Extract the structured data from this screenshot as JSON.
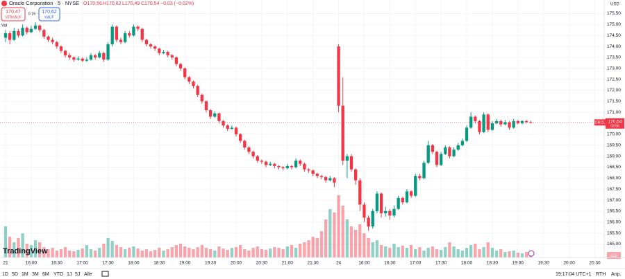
{
  "header": {
    "symbol": "Oracle Corporation · 5 · NYSE",
    "ohlc": [
      "O170,56",
      "H170,62",
      "L170,49",
      "C170,54"
    ],
    "change": "−0,03 (−0,02%)",
    "sell_price": "170,47",
    "sell_label": "VERKAUF",
    "spread": "0.15",
    "buy_price": "170,62",
    "buy_label": "KAUF",
    "volume_label": "Vol",
    "brand": "TradingView"
  },
  "price_tag": {
    "symbol": "ORCL",
    "price": "170,54",
    "countdown": "02:56"
  },
  "currency": "USD",
  "volume_tag": "815",
  "toolbar": {
    "ranges": [
      "1D",
      "5D",
      "1M",
      "3M",
      "6M",
      "YTD",
      "1J",
      "5J",
      "Alle"
    ],
    "clock": "19:17:04 UTC+1",
    "session": "RTH",
    "adjust": "Anp."
  },
  "chart_data": {
    "type": "candlestick",
    "up_color": "#089981",
    "down_color": "#f23645",
    "grid": true,
    "xlim": [
      -1.3,
      140.2
    ],
    "xticks": [
      {
        "value": 0,
        "label": "21"
      },
      {
        "value": 6,
        "label": "16:00"
      },
      {
        "value": 12,
        "label": "16:30"
      },
      {
        "value": 18,
        "label": "17:00"
      },
      {
        "value": 24,
        "label": "17:30"
      },
      {
        "value": 30,
        "label": "18:00"
      },
      {
        "value": 36,
        "label": "18:30"
      },
      {
        "value": 42,
        "label": "19:00"
      },
      {
        "value": 48,
        "label": "19:30"
      },
      {
        "value": 54,
        "label": "20:00"
      },
      {
        "value": 60,
        "label": "20:30"
      },
      {
        "value": 66,
        "label": "21:00"
      },
      {
        "value": 72,
        "label": "21:30"
      },
      {
        "value": 78,
        "label": "24"
      },
      {
        "value": 84,
        "label": "16:00"
      },
      {
        "value": 90,
        "label": "16:30"
      },
      {
        "value": 96,
        "label": "17:00"
      },
      {
        "value": 102,
        "label": "17:30"
      },
      {
        "value": 108,
        "label": "18:00"
      },
      {
        "value": 114,
        "label": "18:30"
      },
      {
        "value": 120,
        "label": "19:00"
      },
      {
        "value": 126,
        "label": "19:30"
      },
      {
        "value": 132,
        "label": "20:00"
      },
      {
        "value": 138,
        "label": "20:30"
      }
    ],
    "ylim": [
      164.7,
      175.8
    ],
    "yticks": [
      {
        "value": 165,
        "label": "165,00"
      },
      {
        "value": 165.5,
        "label": "165,50"
      },
      {
        "value": 166,
        "label": "166,00"
      },
      {
        "value": 166.5,
        "label": "166,50"
      },
      {
        "value": 167,
        "label": "167,00"
      },
      {
        "value": 167.5,
        "label": "167,50"
      },
      {
        "value": 168,
        "label": "168,00"
      },
      {
        "value": 168.5,
        "label": "168,50"
      },
      {
        "value": 169,
        "label": "169,00"
      },
      {
        "value": 169.5,
        "label": "169,50"
      },
      {
        "value": 170,
        "label": "170,00"
      },
      {
        "value": 170.5,
        "label": "170,50"
      },
      {
        "value": 171,
        "label": "171,00"
      },
      {
        "value": 171.5,
        "label": "171,50"
      },
      {
        "value": 172,
        "label": "172,00"
      },
      {
        "value": 172.5,
        "label": "172,50"
      },
      {
        "value": 173,
        "label": "173,00"
      },
      {
        "value": 173.5,
        "label": "173,50"
      },
      {
        "value": 174,
        "label": "174,00"
      },
      {
        "value": 174.5,
        "label": "174,50"
      },
      {
        "value": 175,
        "label": "175,00"
      },
      {
        "value": 175.5,
        "label": "175,50"
      }
    ],
    "last_price": 170.54,
    "open": [
      174.4,
      174.6,
      174.3,
      174.7,
      174.5,
      174.85,
      174.65,
      174.8,
      174.95,
      174.75,
      174.45,
      174.3,
      174.2,
      174.0,
      173.8,
      173.6,
      173.5,
      173.4,
      173.45,
      173.35,
      173.4,
      173.6,
      173.5,
      173.7,
      173.4,
      174.1,
      174.9,
      174.3,
      174.2,
      174.6,
      174.5,
      174.9,
      174.8,
      174.3,
      174.1,
      174.0,
      173.9,
      173.7,
      173.75,
      173.6,
      173.5,
      173.2,
      173.0,
      172.6,
      172.4,
      172.2,
      171.8,
      171.5,
      171.1,
      170.8,
      170.95,
      170.6,
      170.4,
      170.25,
      170.3,
      170.0,
      169.7,
      169.4,
      169.2,
      169.0,
      168.8,
      168.75,
      168.6,
      168.65,
      168.55,
      168.5,
      168.45,
      168.55,
      168.5,
      168.8,
      168.65,
      168.4,
      168.35,
      168.2,
      168.1,
      168.05,
      167.9,
      168.0,
      174.0,
      171.3,
      168.8,
      169.0,
      168.4,
      167.9,
      166.8,
      166.2,
      165.8,
      166.5,
      167.3,
      166.4,
      166.5,
      166.3,
      166.6,
      167.1,
      166.9,
      167.4,
      167.2,
      168.1,
      168.0,
      168.7,
      169.5,
      169.2,
      168.6,
      169.1,
      169.4,
      169.0,
      169.3,
      169.5,
      169.7,
      170.3,
      170.8,
      170.6,
      170.1,
      170.9,
      170.2,
      170.5,
      170.6,
      170.45,
      170.55,
      170.3,
      170.6,
      170.5,
      170.6,
      170.56
    ],
    "high": [
      174.75,
      174.7,
      174.85,
      174.8,
      175.0,
      174.9,
      174.95,
      175.1,
      175.0,
      174.8,
      174.5,
      174.4,
      174.25,
      174.05,
      173.85,
      173.7,
      173.55,
      173.55,
      173.5,
      173.5,
      173.7,
      173.65,
      173.8,
      173.75,
      174.2,
      175.0,
      174.95,
      174.4,
      174.7,
      174.7,
      175.0,
      174.95,
      174.85,
      174.35,
      174.15,
      174.05,
      173.95,
      173.85,
      173.8,
      173.65,
      173.55,
      173.25,
      173.05,
      172.65,
      172.45,
      172.25,
      171.85,
      171.55,
      171.15,
      171.05,
      171.0,
      170.65,
      170.45,
      170.4,
      170.35,
      170.05,
      169.75,
      169.45,
      169.25,
      169.05,
      168.85,
      168.8,
      168.75,
      168.7,
      168.6,
      168.55,
      168.65,
      168.6,
      168.9,
      168.85,
      168.7,
      168.45,
      168.4,
      168.25,
      168.15,
      168.1,
      168.1,
      168.05,
      174.1,
      172.6,
      169.1,
      169.1,
      168.45,
      168.0,
      166.9,
      166.3,
      166.6,
      167.4,
      167.35,
      166.7,
      166.6,
      166.75,
      167.2,
      167.15,
      167.5,
      167.45,
      168.2,
      168.2,
      168.8,
      169.7,
      169.55,
      169.25,
      169.2,
      169.5,
      169.45,
      169.4,
      169.6,
      169.8,
      170.4,
      171.0,
      170.85,
      170.65,
      171.0,
      170.95,
      170.6,
      170.7,
      170.65,
      170.65,
      170.6,
      170.7,
      170.65,
      170.65,
      170.65,
      170.62
    ],
    "low": [
      174.2,
      174.1,
      174.25,
      174.4,
      174.45,
      174.55,
      174.6,
      174.75,
      174.65,
      174.35,
      174.2,
      174.1,
      173.9,
      173.7,
      173.5,
      173.4,
      173.3,
      173.35,
      173.3,
      173.3,
      173.35,
      173.4,
      173.45,
      173.3,
      173.35,
      174.0,
      174.2,
      174.1,
      174.15,
      174.4,
      174.45,
      174.7,
      174.2,
      174.0,
      173.9,
      173.8,
      173.6,
      173.65,
      173.5,
      173.4,
      173.1,
      172.9,
      172.5,
      172.3,
      172.1,
      171.7,
      171.4,
      171.0,
      170.7,
      170.75,
      170.5,
      170.3,
      170.15,
      170.2,
      169.9,
      169.6,
      169.3,
      169.1,
      168.9,
      168.7,
      168.65,
      168.5,
      168.55,
      168.45,
      168.4,
      168.35,
      168.4,
      168.4,
      168.45,
      168.55,
      168.3,
      168.25,
      168.1,
      168.0,
      167.95,
      167.8,
      167.85,
      167.6,
      171.0,
      168.6,
      168.0,
      168.3,
      167.7,
      166.5,
      166.0,
      165.6,
      165.7,
      166.4,
      166.2,
      166.25,
      166.1,
      166.2,
      166.55,
      166.8,
      166.85,
      167.1,
      167.15,
      167.9,
      167.95,
      168.65,
      169.1,
      168.5,
      168.55,
      169.05,
      168.9,
      168.95,
      169.25,
      169.45,
      169.65,
      170.25,
      170.5,
      170.0,
      170.05,
      170.1,
      170.15,
      170.45,
      170.35,
      170.4,
      170.2,
      170.25,
      170.45,
      170.45,
      170.5,
      170.49
    ],
    "close": [
      174.6,
      174.3,
      174.7,
      174.5,
      174.85,
      174.65,
      174.8,
      174.95,
      174.75,
      174.45,
      174.3,
      174.2,
      174.0,
      173.8,
      173.6,
      173.5,
      173.4,
      173.45,
      173.35,
      173.4,
      173.6,
      173.5,
      173.7,
      173.4,
      174.1,
      174.9,
      174.3,
      174.2,
      174.6,
      174.5,
      174.9,
      174.8,
      174.3,
      174.1,
      174.0,
      173.9,
      173.7,
      173.75,
      173.6,
      173.5,
      173.2,
      173.0,
      172.6,
      172.4,
      172.2,
      171.8,
      171.5,
      171.1,
      170.8,
      170.95,
      170.6,
      170.4,
      170.25,
      170.3,
      170.0,
      169.7,
      169.4,
      169.2,
      169.0,
      168.8,
      168.75,
      168.6,
      168.65,
      168.55,
      168.5,
      168.45,
      168.55,
      168.5,
      168.8,
      168.65,
      168.4,
      168.35,
      168.2,
      168.1,
      168.05,
      167.9,
      168.0,
      167.8,
      171.3,
      168.8,
      169.0,
      168.4,
      167.9,
      166.8,
      166.2,
      165.8,
      166.5,
      167.3,
      166.4,
      166.5,
      166.3,
      166.6,
      167.1,
      166.9,
      167.4,
      167.2,
      168.1,
      168.0,
      168.7,
      169.5,
      169.2,
      168.6,
      169.1,
      169.4,
      169.0,
      169.3,
      169.5,
      169.7,
      170.3,
      170.8,
      170.6,
      170.1,
      170.9,
      170.2,
      170.5,
      170.6,
      170.45,
      170.55,
      170.3,
      170.6,
      170.5,
      170.6,
      170.56,
      170.54
    ],
    "volume": [
      45,
      30,
      22,
      28,
      35,
      20,
      18,
      25,
      22,
      15,
      12,
      14,
      10,
      12,
      15,
      10,
      9,
      11,
      13,
      18,
      12,
      10,
      14,
      20,
      28,
      24,
      18,
      15,
      12,
      14,
      16,
      13,
      10,
      12,
      9,
      11,
      14,
      10,
      12,
      15,
      18,
      20,
      16,
      14,
      12,
      15,
      18,
      14,
      12,
      10,
      16,
      13,
      11,
      14,
      15,
      18,
      12,
      10,
      14,
      16,
      12,
      11,
      13,
      15,
      14,
      12,
      16,
      18,
      14,
      20,
      22,
      25,
      30,
      28,
      38,
      55,
      70,
      65,
      90,
      75,
      55,
      45,
      40,
      48,
      35,
      28,
      22,
      25,
      18,
      16,
      14,
      20,
      15,
      17,
      14,
      18,
      12,
      15,
      10,
      14,
      16,
      12,
      11,
      15,
      22,
      16,
      12,
      10,
      14,
      18,
      20,
      12,
      15,
      22,
      14,
      10,
      12,
      8,
      9,
      10,
      7,
      6,
      8,
      6
    ]
  }
}
